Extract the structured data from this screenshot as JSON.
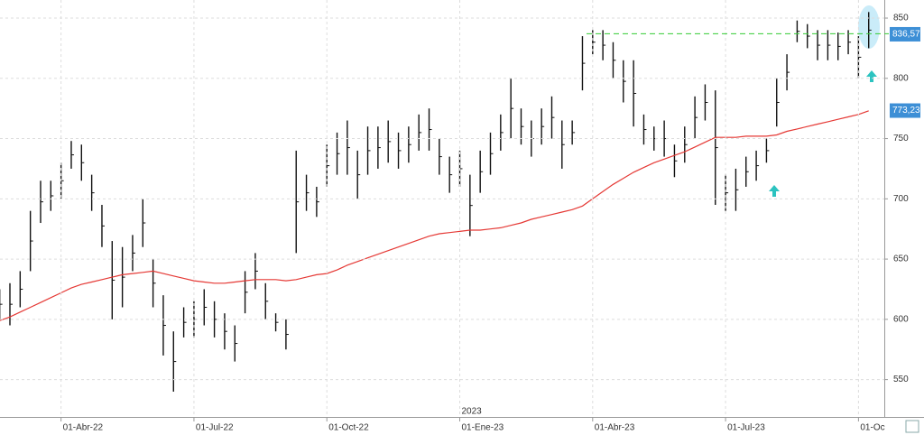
{
  "chart_data": {
    "type": "ohlc",
    "categories": [
      null,
      null,
      null,
      null,
      null,
      null,
      "01-Abr-22",
      null,
      null,
      null,
      null,
      null,
      null,
      null,
      null,
      null,
      null,
      null,
      null,
      "01-Jul-22",
      null,
      null,
      null,
      null,
      null,
      null,
      null,
      null,
      null,
      null,
      null,
      null,
      "01-Oct-22",
      null,
      null,
      null,
      null,
      null,
      null,
      null,
      null,
      null,
      null,
      null,
      null,
      "01-Ene-23",
      null,
      null,
      null,
      null,
      null,
      null,
      null,
      null,
      null,
      null,
      null,
      null,
      "01-Abr-23",
      null,
      null,
      null,
      null,
      null,
      null,
      null,
      null,
      null,
      null,
      null,
      null,
      "01-Jul-23",
      null,
      null,
      null,
      null,
      null,
      null,
      null,
      null,
      null,
      null,
      null,
      null,
      "01-Oc",
      null
    ],
    "high": [
      625,
      630,
      640,
      690,
      715,
      715,
      730,
      748,
      745,
      720,
      695,
      665,
      660,
      670,
      700,
      650,
      620,
      590,
      610,
      615,
      625,
      615,
      605,
      595,
      640,
      655,
      630,
      605,
      600,
      740,
      720,
      710,
      745,
      755,
      765,
      740,
      760,
      760,
      765,
      755,
      760,
      770,
      775,
      750,
      735,
      740,
      720,
      740,
      755,
      770,
      800,
      775,
      765,
      775,
      785,
      765,
      765,
      835,
      840,
      840,
      830,
      815,
      815,
      770,
      760,
      765,
      745,
      760,
      785,
      795,
      790,
      720,
      725,
      735,
      740,
      750,
      800,
      820,
      848,
      845,
      840,
      840,
      838,
      840,
      835,
      855
    ],
    "low": [
      600,
      595,
      610,
      640,
      680,
      690,
      700,
      725,
      715,
      690,
      660,
      600,
      610,
      640,
      660,
      610,
      570,
      540,
      585,
      585,
      595,
      585,
      575,
      565,
      605,
      625,
      600,
      590,
      575,
      655,
      690,
      685,
      710,
      720,
      720,
      700,
      720,
      725,
      730,
      725,
      730,
      740,
      740,
      720,
      705,
      710,
      669,
      705,
      720,
      740,
      750,
      745,
      735,
      745,
      750,
      725,
      745,
      790,
      820,
      815,
      800,
      780,
      760,
      745,
      740,
      735,
      718,
      730,
      750,
      765,
      695,
      690,
      690,
      710,
      715,
      730,
      760,
      790,
      830,
      825,
      815,
      815,
      815,
      820,
      800,
      825
    ],
    "ma_color": "#e53935",
    "ma": [
      599,
      602,
      606,
      610,
      614,
      618,
      622,
      626,
      629,
      631,
      633,
      635,
      637,
      638,
      639,
      640,
      638,
      636,
      634,
      632,
      631,
      630,
      630,
      631,
      632,
      633,
      633,
      633,
      632,
      633,
      635,
      637,
      638,
      641,
      645,
      648,
      651,
      654,
      657,
      660,
      663,
      666,
      669,
      671,
      672,
      673,
      674,
      674,
      675,
      676,
      678,
      680,
      683,
      685,
      687,
      689,
      691,
      694,
      700,
      706,
      712,
      717,
      722,
      726,
      730,
      733,
      736,
      739,
      743,
      747,
      751,
      751,
      751,
      752,
      752,
      752,
      753,
      756,
      758,
      760,
      762,
      764,
      766,
      768,
      770,
      773
    ],
    "price_labels": [
      {
        "value": 836.57,
        "label": "836,57"
      },
      {
        "value": 773.23,
        "label": "773,23"
      }
    ],
    "resistance": 837,
    "annotation": "2023",
    "ylim": [
      519,
      865
    ],
    "yticks": [
      550,
      600,
      650,
      700,
      750,
      800,
      850
    ],
    "grid": true
  }
}
